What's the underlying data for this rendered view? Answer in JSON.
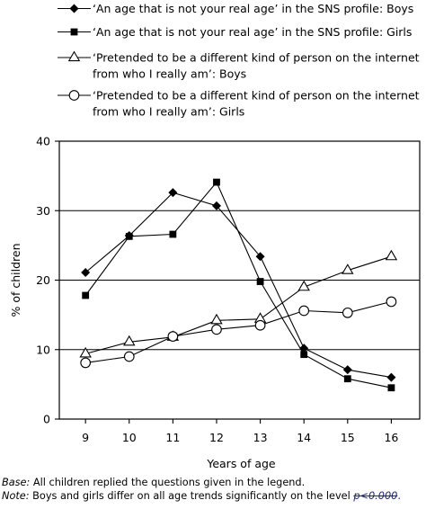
{
  "chart_data": {
    "type": "line",
    "categories": [
      9,
      10,
      11,
      12,
      13,
      14,
      15,
      16
    ],
    "xlabel": "Years of age",
    "ylabel": "% of children",
    "ylim": [
      0,
      40
    ],
    "yticks": [
      0,
      10,
      20,
      30,
      40
    ],
    "grid": "horizontal",
    "legend_position": "top",
    "series": [
      {
        "name": "‘An age that is not your real age’ in the SNS profile: Boys",
        "marker": "diamond-filled",
        "values": [
          21.1,
          26.4,
          32.6,
          30.7,
          23.4,
          10.2,
          7.1,
          6.0
        ]
      },
      {
        "name": "‘An age that is not your real age’ in the SNS profile: Girls",
        "marker": "square-filled",
        "values": [
          17.8,
          26.3,
          26.6,
          34.1,
          19.8,
          9.3,
          5.8,
          4.5
        ]
      },
      {
        "name_lines": [
          "‘Pretended to be a different kind of person on the internet",
          "from who I really am’: Boys"
        ],
        "marker": "triangle-open",
        "values": [
          9.4,
          11.1,
          11.8,
          14.2,
          14.4,
          19.0,
          21.4,
          23.4
        ]
      },
      {
        "name_lines": [
          "‘Pretended to be a different kind of person on the internet",
          "from who I really am’: Girls"
        ],
        "marker": "circle-open",
        "values": [
          8.1,
          9.0,
          11.9,
          12.9,
          13.5,
          15.6,
          15.3,
          16.9
        ]
      }
    ]
  },
  "notes": {
    "base_label": "Base:",
    "base_text": " All children replied the questions given in the legend.",
    "note_label": "Note:",
    "note_text": " Boys and girls differ on all age trends significantly on the level ",
    "note_struck": "p<0.000",
    "note_end": "."
  },
  "colors": {
    "line": "#000000",
    "marker_fill": "#000000",
    "open_marker_fill": "#ffffff",
    "annotation": "#1a237e"
  }
}
